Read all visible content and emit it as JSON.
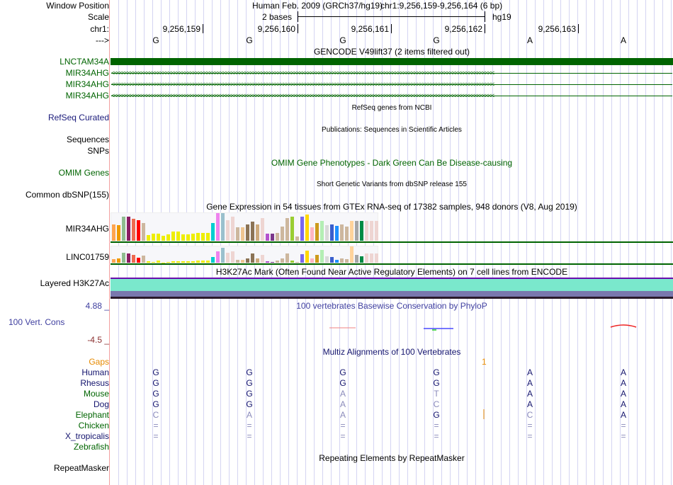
{
  "header": {
    "window_position_label": "Window Position",
    "assembly": "Human Feb. 2009 (GRCh37/hg19)",
    "position": "chr1:9,256,159-9,256,164 (6 bp)",
    "scale_label": "Scale",
    "scale_text": "2 bases",
    "scale_db": "hg19",
    "chrom_label": "chr1:",
    "strand_label": "--->"
  },
  "ruler": {
    "ticks": [
      "9,256,159",
      "9,256,160",
      "9,256,161",
      "9,256,162",
      "9,256,163"
    ]
  },
  "bases": [
    "G",
    "G",
    "G",
    "G",
    "A",
    "A"
  ],
  "gencode": {
    "title": "GENCODE V49lift37 (2 items filtered out)",
    "genes": [
      "LNCTAM34A",
      "MIR34AHG",
      "MIR34AHG",
      "MIR34AHG"
    ]
  },
  "refseq": {
    "title": "RefSeq genes from NCBI",
    "label": "RefSeq Curated"
  },
  "publications": {
    "title": "Publications: Sequences in Scientific Articles",
    "label1": "Sequences",
    "label2": "SNPs"
  },
  "omim": {
    "title": "OMIM Gene Phenotypes - Dark Green Can Be Disease-causing",
    "label": "OMIM Genes"
  },
  "dbsnp": {
    "title": "Short Genetic Variants from dbSNP release 155",
    "label": "Common dbSNP(155)"
  },
  "gtex": {
    "title": "Gene Expression in 54 tissues from GTEx RNA-seq of 17382 samples, 948 donors (V8, Aug 2019)",
    "colors": [
      "#FFA54F",
      "#EE9A00",
      "#8FBC8F",
      "#8B1C62",
      "#EE6A50",
      "#FF0000",
      "#CDB79E",
      "#EEEE00",
      "#EEEE00",
      "#EEEE00",
      "#EEEE00",
      "#EEEE00",
      "#EEEE00",
      "#EEEE00",
      "#EEEE00",
      "#EEEE00",
      "#EEEE00",
      "#EEEE00",
      "#EEEE00",
      "#EEEE00",
      "#00CED1",
      "#EE82EE",
      "#9AC0CD",
      "#EED5D2",
      "#EED5D2",
      "#CDB79E",
      "#EEC591",
      "#8B7355",
      "#8B7355",
      "#CDAA7D",
      "#EED5D2",
      "#B452CD",
      "#7A378B",
      "#CDB79E",
      "#CDB79E",
      "#CDB79E",
      "#9ACD32",
      "#CDB79E",
      "#7A67EE",
      "#FFD700",
      "#FFB6C1",
      "#CD9B1D",
      "#B4EEB4",
      "#D9D9D9",
      "#3A5FCD",
      "#1E90FF",
      "#CDB79E",
      "#CDB79E",
      "#FFD39B",
      "#A6A6A6",
      "#008B45",
      "#EED5D2",
      "#EED5D2",
      "#EED5D2"
    ],
    "genes": [
      {
        "name": "MIR34AHG",
        "values": [
          59,
          57,
          86,
          88,
          80,
          74,
          65,
          20,
          25,
          26,
          17,
          22,
          34,
          34,
          22,
          22,
          25,
          28,
          29,
          29,
          64,
          100,
          100,
          74,
          88,
          48,
          48,
          59,
          68,
          59,
          83,
          26,
          25,
          29,
          51,
          83,
          86,
          15,
          86,
          95,
          48,
          65,
          73,
          57,
          59,
          53,
          59,
          52,
          73,
          73,
          71,
          71,
          71,
          71
        ]
      },
      {
        "name": "LINC01759",
        "values": [
          23,
          28,
          63,
          58,
          46,
          32,
          43,
          7,
          4,
          12,
          2,
          4,
          7,
          9,
          7,
          7,
          9,
          11,
          11,
          11,
          35,
          68,
          90,
          63,
          68,
          17,
          17,
          24,
          55,
          24,
          48,
          7,
          4,
          12,
          24,
          55,
          12,
          4,
          52,
          73,
          24,
          48,
          78,
          39,
          36,
          17,
          28,
          20,
          100,
          48,
          39,
          55,
          55,
          55
        ]
      }
    ]
  },
  "h3k27ac": {
    "title": "H3K27Ac Mark (Often Found Near Active Regulatory Elements) on 7 cell lines from ENCODE",
    "label": "Layered H3K27Ac",
    "colors": [
      "#7AE8CC",
      "#7A78AE",
      "#2A1A2A"
    ]
  },
  "phylop": {
    "title": "100 vertebrates Basewise Conservation by PhyloP",
    "label": "100 Vert. Cons",
    "max": "4.88 _",
    "min": "-4.5 _"
  },
  "multiz": {
    "title": "Multiz Alignments of 100 Vertebrates",
    "gaps_label": "Gaps",
    "gaps_value": "1",
    "species": [
      {
        "name": "Human",
        "color": "navy",
        "bases": [
          "G",
          "G",
          "G",
          "G",
          "A",
          "A"
        ]
      },
      {
        "name": "Rhesus",
        "color": "navy",
        "bases": [
          "G",
          "G",
          "G",
          "G",
          "A",
          "A"
        ]
      },
      {
        "name": "Mouse",
        "color": "green",
        "bases": [
          "G",
          "G",
          "A",
          "T",
          "A",
          "A"
        ]
      },
      {
        "name": "Dog",
        "color": "navy",
        "bases": [
          "G",
          "G",
          "A",
          "C",
          "A",
          "A"
        ]
      },
      {
        "name": "Elephant",
        "color": "green",
        "bases": [
          "C",
          "A",
          "A",
          "G",
          "C",
          "A"
        ]
      },
      {
        "name": "Chicken",
        "color": "green",
        "bases": [
          "=",
          "=",
          "=",
          "=",
          "=",
          "="
        ]
      },
      {
        "name": "X_tropicalis",
        "color": "navy",
        "bases": [
          "=",
          "=",
          "=",
          "=",
          "=",
          "="
        ]
      },
      {
        "name": "Zebrafish",
        "color": "green",
        "bases": [
          "",
          "",
          "",
          "",
          "",
          ""
        ]
      }
    ]
  },
  "repeatmasker": {
    "title": "Repeating Elements by RepeatMasker",
    "label": "RepeatMasker"
  }
}
